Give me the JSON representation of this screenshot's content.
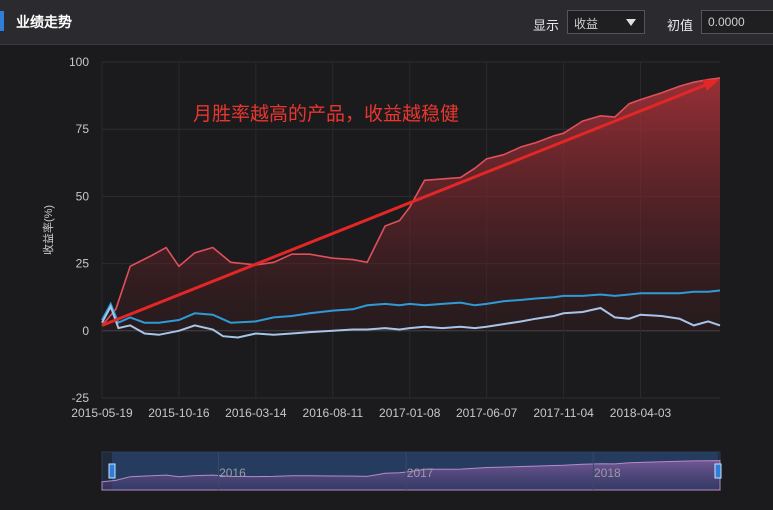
{
  "header": {
    "title": "业绩走势",
    "show_label": "显示",
    "show_value": "收益",
    "initial_label": "初值",
    "initial_value": "0.0000"
  },
  "colors": {
    "product": "#e0505a",
    "benchmark1": "#2e9bd6",
    "benchmark2": "#a9c4e8",
    "trend": "#e32626",
    "accent": "#2f7fd8"
  },
  "chart_data": {
    "type": "line",
    "title": "",
    "ylabel": "收益率(%)",
    "ylim": [
      -25,
      100
    ],
    "yticks": [
      100,
      75,
      50,
      25,
      0,
      -25
    ],
    "xlim": [
      "2015-05-19",
      "2018-09-05"
    ],
    "xticks": [
      "2015-05-19",
      "2015-10-16",
      "2016-03-14",
      "2016-08-11",
      "2017-01-08",
      "2017-06-07",
      "2017-11-04",
      "2018-04-03"
    ],
    "annotation": "月胜率越高的产品，收益越稳健",
    "trendline": {
      "from": [
        "2015-05-19",
        2
      ],
      "to": [
        "2018-09-05",
        93
      ]
    },
    "series": [
      {
        "values": [
          [
            "2015-05-19",
            2
          ],
          [
            "2015-06-15",
            8
          ],
          [
            "2015-07-13",
            24
          ],
          [
            "2015-08-24",
            28
          ],
          [
            "2015-09-21",
            31
          ],
          [
            "2015-10-16",
            24
          ],
          [
            "2015-11-16",
            29
          ],
          [
            "2015-12-21",
            31
          ],
          [
            "2016-01-25",
            25.5
          ],
          [
            "2016-03-14",
            24.5
          ],
          [
            "2016-04-18",
            25.5
          ],
          [
            "2016-05-23",
            28.5
          ],
          [
            "2016-06-27",
            28.5
          ],
          [
            "2016-08-11",
            27
          ],
          [
            "2016-09-19",
            26.5
          ],
          [
            "2016-10-17",
            25.5
          ],
          [
            "2016-11-21",
            39
          ],
          [
            "2016-12-19",
            41
          ],
          [
            "2017-01-08",
            46
          ],
          [
            "2017-02-06",
            56
          ],
          [
            "2017-03-13",
            56.5
          ],
          [
            "2017-04-17",
            57
          ],
          [
            "2017-05-15",
            60.5
          ],
          [
            "2017-06-07",
            64
          ],
          [
            "2017-07-10",
            65.5
          ],
          [
            "2017-08-14",
            68.5
          ],
          [
            "2017-09-11",
            70
          ],
          [
            "2017-10-16",
            72.5
          ],
          [
            "2017-11-04",
            73.5
          ],
          [
            "2017-12-11",
            78
          ],
          [
            "2018-01-15",
            80
          ],
          [
            "2018-02-12",
            79.5
          ],
          [
            "2018-03-12",
            84.5
          ],
          [
            "2018-04-03",
            86
          ],
          [
            "2018-05-14",
            88.5
          ],
          [
            "2018-06-18",
            91
          ],
          [
            "2018-07-16",
            92.5
          ],
          [
            "2018-08-13",
            93.5
          ],
          [
            "2018-09-05",
            94
          ]
        ]
      },
      {
        "values": [
          [
            "2015-05-19",
            4
          ],
          [
            "2015-06-05",
            10
          ],
          [
            "2015-06-20",
            3
          ],
          [
            "2015-07-13",
            5
          ],
          [
            "2015-08-10",
            3
          ],
          [
            "2015-09-07",
            3
          ],
          [
            "2015-10-16",
            4
          ],
          [
            "2015-11-16",
            6.5
          ],
          [
            "2015-12-21",
            6
          ],
          [
            "2016-01-25",
            3
          ],
          [
            "2016-03-14",
            3.5
          ],
          [
            "2016-04-18",
            5
          ],
          [
            "2016-05-23",
            5.5
          ],
          [
            "2016-06-27",
            6.5
          ],
          [
            "2016-08-11",
            7.5
          ],
          [
            "2016-09-19",
            8
          ],
          [
            "2016-10-17",
            9.5
          ],
          [
            "2016-11-21",
            10
          ],
          [
            "2016-12-19",
            9.5
          ],
          [
            "2017-01-08",
            10
          ],
          [
            "2017-02-06",
            9.5
          ],
          [
            "2017-03-13",
            10
          ],
          [
            "2017-04-17",
            10.5
          ],
          [
            "2017-05-15",
            9.5
          ],
          [
            "2017-06-07",
            10
          ],
          [
            "2017-07-10",
            11
          ],
          [
            "2017-08-14",
            11.5
          ],
          [
            "2017-09-11",
            12
          ],
          [
            "2017-10-16",
            12.5
          ],
          [
            "2017-11-04",
            13
          ],
          [
            "2017-12-11",
            13
          ],
          [
            "2018-01-15",
            13.5
          ],
          [
            "2018-02-12",
            13
          ],
          [
            "2018-03-12",
            13.5
          ],
          [
            "2018-04-03",
            14
          ],
          [
            "2018-05-14",
            14
          ],
          [
            "2018-06-18",
            14
          ],
          [
            "2018-07-16",
            14.5
          ],
          [
            "2018-08-13",
            14.5
          ],
          [
            "2018-09-05",
            15
          ]
        ]
      },
      {
        "values": [
          [
            "2015-05-19",
            3
          ],
          [
            "2015-06-05",
            9
          ],
          [
            "2015-06-20",
            1
          ],
          [
            "2015-07-13",
            2
          ],
          [
            "2015-08-10",
            -1
          ],
          [
            "2015-09-07",
            -1.5
          ],
          [
            "2015-10-16",
            0
          ],
          [
            "2015-11-16",
            2
          ],
          [
            "2015-12-21",
            0.5
          ],
          [
            "2016-01-10",
            -2
          ],
          [
            "2016-02-08",
            -2.5
          ],
          [
            "2016-03-14",
            -1
          ],
          [
            "2016-04-18",
            -1.5
          ],
          [
            "2016-05-23",
            -1
          ],
          [
            "2016-06-27",
            -0.5
          ],
          [
            "2016-08-11",
            0
          ],
          [
            "2016-09-19",
            0.5
          ],
          [
            "2016-10-17",
            0.5
          ],
          [
            "2016-11-21",
            1
          ],
          [
            "2016-12-19",
            0.5
          ],
          [
            "2017-01-08",
            1
          ],
          [
            "2017-02-06",
            1.5
          ],
          [
            "2017-03-13",
            1
          ],
          [
            "2017-04-17",
            1.5
          ],
          [
            "2017-05-15",
            1
          ],
          [
            "2017-06-07",
            1.5
          ],
          [
            "2017-07-10",
            2.5
          ],
          [
            "2017-08-14",
            3.5
          ],
          [
            "2017-09-11",
            4.5
          ],
          [
            "2017-10-16",
            5.5
          ],
          [
            "2017-11-04",
            6.5
          ],
          [
            "2017-12-11",
            7
          ],
          [
            "2018-01-15",
            8.5
          ],
          [
            "2018-02-12",
            5
          ],
          [
            "2018-03-12",
            4.5
          ],
          [
            "2018-04-03",
            6
          ],
          [
            "2018-05-14",
            5.5
          ],
          [
            "2018-06-18",
            4.5
          ],
          [
            "2018-07-16",
            2
          ],
          [
            "2018-08-13",
            3.5
          ],
          [
            "2018-09-05",
            2
          ]
        ]
      }
    ],
    "navigator": {
      "years": [
        "2016",
        "2017",
        "2018"
      ]
    }
  }
}
